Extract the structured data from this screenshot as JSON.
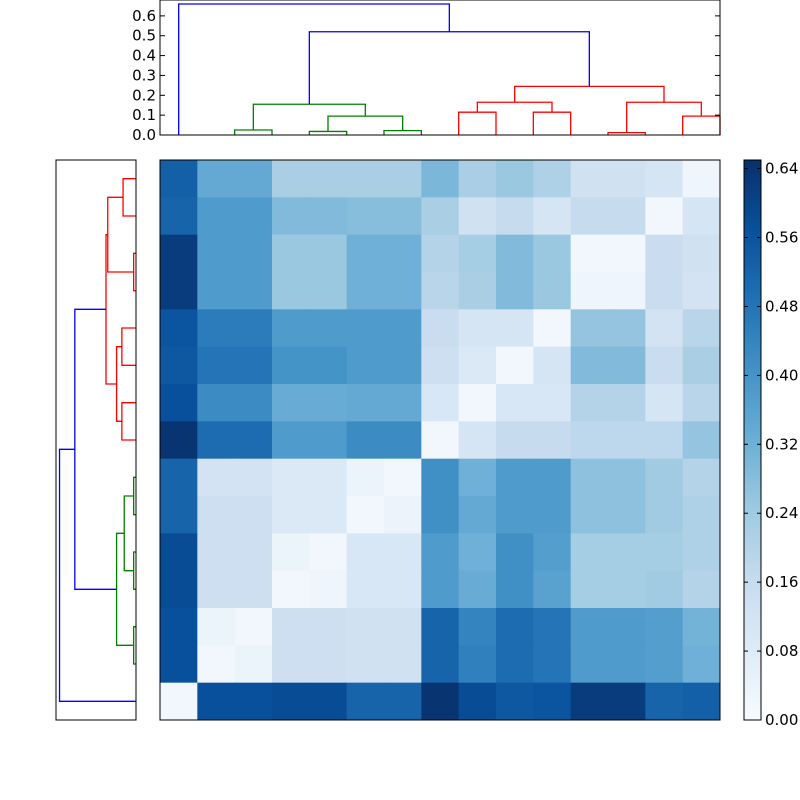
{
  "chart_data": [
    {
      "type": "dendrogram",
      "orientation": "top",
      "ylim": [
        0,
        0.68
      ],
      "yticks": [
        "0.0",
        "0.1",
        "0.2",
        "0.3",
        "0.4",
        "0.5",
        "0.6"
      ],
      "colors": {
        "green": "#008000",
        "red": "#ff0000",
        "blue": "#0000ff"
      },
      "links": [
        {
          "color": "green",
          "x": [
            2,
            2,
            3,
            3
          ],
          "y": [
            0,
            0.025,
            0.025,
            0
          ]
        },
        {
          "color": "green",
          "x": [
            4,
            4,
            5,
            5
          ],
          "y": [
            0,
            0.018,
            0.018,
            0
          ]
        },
        {
          "color": "green",
          "x": [
            6,
            6,
            7,
            7
          ],
          "y": [
            0,
            0.022,
            0.022,
            0
          ]
        },
        {
          "color": "green",
          "x": [
            4.5,
            4.5,
            6.5,
            6.5
          ],
          "y": [
            0.018,
            0.095,
            0.095,
            0.022
          ]
        },
        {
          "color": "green",
          "x": [
            2.5,
            2.5,
            5.5,
            5.5
          ],
          "y": [
            0.025,
            0.155,
            0.155,
            0.095
          ]
        },
        {
          "color": "red",
          "x": [
            8,
            8,
            9,
            9
          ],
          "y": [
            0,
            0.115,
            0.115,
            0
          ]
        },
        {
          "color": "red",
          "x": [
            10,
            10,
            11,
            11
          ],
          "y": [
            0,
            0.115,
            0.115,
            0
          ]
        },
        {
          "color": "red",
          "x": [
            8.5,
            8.5,
            10.5,
            10.5
          ],
          "y": [
            0.115,
            0.165,
            0.165,
            0.115
          ]
        },
        {
          "color": "red",
          "x": [
            12,
            12,
            13,
            13
          ],
          "y": [
            0,
            0.012,
            0.012,
            0
          ]
        },
        {
          "color": "red",
          "x": [
            14,
            14,
            15,
            15
          ],
          "y": [
            0,
            0.095,
            0.095,
            0
          ]
        },
        {
          "color": "red",
          "x": [
            12.5,
            12.5,
            14.5,
            14.5
          ],
          "y": [
            0.012,
            0.165,
            0.165,
            0.095
          ]
        },
        {
          "color": "red",
          "x": [
            9.5,
            9.5,
            13.5,
            13.5
          ],
          "y": [
            0.165,
            0.245,
            0.245,
            0.165
          ]
        },
        {
          "color": "blue",
          "x": [
            4,
            4,
            11.5,
            11.5
          ],
          "y": [
            0.155,
            0.52,
            0.52,
            0.245
          ]
        },
        {
          "color": "blue",
          "x": [
            0.5,
            0.5,
            7.75,
            7.75
          ],
          "y": [
            0,
            0.66,
            0.66,
            0.52
          ]
        }
      ]
    },
    {
      "type": "dendrogram",
      "orientation": "left",
      "xlim": [
        0,
        0.68
      ],
      "links": [
        {
          "color": "red",
          "y": [
            0.5,
            0.5,
            1.5,
            1.5
          ],
          "x": [
            0,
            0.11,
            0.11,
            0
          ]
        },
        {
          "color": "red",
          "y": [
            2.5,
            2.5,
            3.5,
            3.5
          ],
          "x": [
            0,
            0.02,
            0.02,
            0
          ]
        },
        {
          "color": "red",
          "y": [
            1,
            1,
            3,
            3
          ],
          "x": [
            0.11,
            0.24,
            0.24,
            0.02
          ]
        },
        {
          "color": "red",
          "y": [
            4.5,
            4.5,
            5.5,
            5.5
          ],
          "x": [
            0,
            0.12,
            0.12,
            0
          ]
        },
        {
          "color": "red",
          "y": [
            6.5,
            6.5,
            7.5,
            7.5
          ],
          "x": [
            0,
            0.12,
            0.12,
            0
          ]
        },
        {
          "color": "red",
          "y": [
            5,
            5,
            7,
            7
          ],
          "x": [
            0.12,
            0.165,
            0.165,
            0.12
          ]
        },
        {
          "color": "red",
          "y": [
            2,
            2,
            6,
            6
          ],
          "x": [
            0.24,
            0.255,
            0.255,
            0.165
          ]
        },
        {
          "color": "green",
          "y": [
            8.5,
            8.5,
            9.5,
            9.5
          ],
          "x": [
            0,
            0.02,
            0.02,
            0
          ]
        },
        {
          "color": "green",
          "y": [
            10.5,
            10.5,
            11.5,
            11.5
          ],
          "x": [
            0,
            0.02,
            0.02,
            0
          ]
        },
        {
          "color": "green",
          "y": [
            9,
            9,
            11,
            11
          ],
          "x": [
            0.02,
            0.1,
            0.1,
            0.02
          ]
        },
        {
          "color": "green",
          "y": [
            12.5,
            12.5,
            13.5,
            13.5
          ],
          "x": [
            0,
            0.02,
            0.02,
            0
          ]
        },
        {
          "color": "green",
          "y": [
            10,
            10,
            13,
            13
          ],
          "x": [
            0.1,
            0.165,
            0.165,
            0.02
          ]
        },
        {
          "color": "blue",
          "y": [
            4,
            4,
            11.5,
            11.5
          ],
          "x": [
            0.255,
            0.52,
            0.52,
            0.165
          ]
        },
        {
          "color": "blue",
          "y": [
            7.75,
            7.75,
            14.5,
            14.5
          ],
          "x": [
            0.52,
            0.65,
            0.65,
            0
          ]
        }
      ]
    },
    {
      "type": "heatmap",
      "rows": 15,
      "cols": 15,
      "colormap": "Blues",
      "vmin": 0,
      "vmax": 0.65,
      "values": [
        [
          0.53,
          0.34,
          0.34,
          0.22,
          0.22,
          0.22,
          0.22,
          0.3,
          0.22,
          0.25,
          0.21,
          0.13,
          0.13,
          0.11,
          0.03
        ],
        [
          0.52,
          0.38,
          0.38,
          0.29,
          0.29,
          0.28,
          0.28,
          0.22,
          0.13,
          0.16,
          0.11,
          0.16,
          0.16,
          0.02,
          0.11
        ],
        [
          0.62,
          0.38,
          0.38,
          0.25,
          0.25,
          0.32,
          0.32,
          0.2,
          0.23,
          0.29,
          0.25,
          0.02,
          0.02,
          0.15,
          0.13
        ],
        [
          0.62,
          0.38,
          0.38,
          0.25,
          0.25,
          0.32,
          0.32,
          0.19,
          0.22,
          0.29,
          0.25,
          0.03,
          0.03,
          0.15,
          0.12
        ],
        [
          0.56,
          0.46,
          0.46,
          0.38,
          0.38,
          0.38,
          0.38,
          0.15,
          0.11,
          0.11,
          0.02,
          0.26,
          0.26,
          0.12,
          0.19
        ],
        [
          0.55,
          0.48,
          0.48,
          0.4,
          0.4,
          0.38,
          0.38,
          0.14,
          0.09,
          0.02,
          0.11,
          0.29,
          0.29,
          0.15,
          0.22
        ],
        [
          0.57,
          0.42,
          0.42,
          0.33,
          0.33,
          0.34,
          0.34,
          0.1,
          0.02,
          0.1,
          0.1,
          0.2,
          0.2,
          0.11,
          0.19
        ],
        [
          0.64,
          0.5,
          0.5,
          0.38,
          0.38,
          0.42,
          0.42,
          0.02,
          0.11,
          0.16,
          0.16,
          0.18,
          0.18,
          0.18,
          0.26
        ],
        [
          0.52,
          0.12,
          0.12,
          0.09,
          0.09,
          0.04,
          0.02,
          0.41,
          0.32,
          0.38,
          0.38,
          0.27,
          0.27,
          0.24,
          0.2
        ],
        [
          0.52,
          0.14,
          0.14,
          0.09,
          0.09,
          0.02,
          0.04,
          0.41,
          0.34,
          0.38,
          0.38,
          0.27,
          0.27,
          0.24,
          0.21
        ],
        [
          0.58,
          0.14,
          0.14,
          0.04,
          0.02,
          0.1,
          0.1,
          0.38,
          0.32,
          0.41,
          0.37,
          0.23,
          0.23,
          0.23,
          0.21
        ],
        [
          0.58,
          0.14,
          0.14,
          0.02,
          0.03,
          0.1,
          0.1,
          0.38,
          0.33,
          0.41,
          0.36,
          0.23,
          0.23,
          0.24,
          0.2
        ],
        [
          0.57,
          0.04,
          0.02,
          0.14,
          0.14,
          0.13,
          0.13,
          0.52,
          0.44,
          0.5,
          0.48,
          0.38,
          0.38,
          0.37,
          0.31
        ],
        [
          0.57,
          0.02,
          0.04,
          0.14,
          0.14,
          0.13,
          0.13,
          0.52,
          0.45,
          0.5,
          0.48,
          0.38,
          0.38,
          0.37,
          0.32
        ],
        [
          0.02,
          0.57,
          0.57,
          0.58,
          0.58,
          0.52,
          0.52,
          0.64,
          0.58,
          0.55,
          0.56,
          0.62,
          0.62,
          0.52,
          0.53
        ]
      ]
    },
    {
      "type": "colorbar",
      "colormap": "Blues",
      "range": [
        0,
        0.65
      ],
      "ticks": [
        "0.00",
        "0.08",
        "0.16",
        "0.24",
        "0.32",
        "0.40",
        "0.48",
        "0.56",
        "0.64"
      ]
    }
  ]
}
